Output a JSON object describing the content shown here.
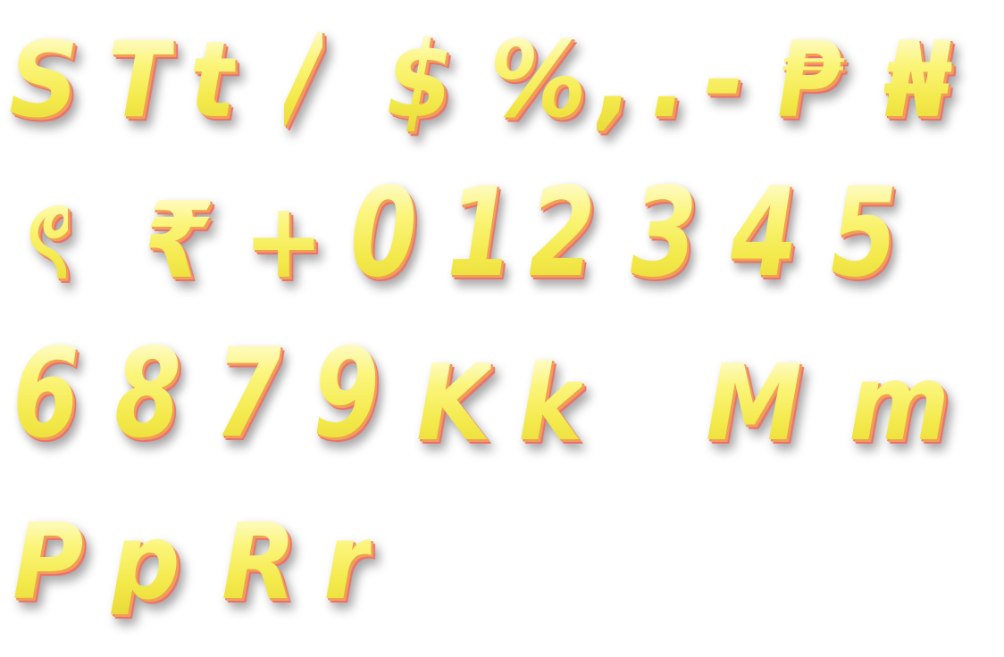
{
  "rows": [
    {
      "glyphs": [
        "S",
        "T",
        "t",
        "/",
        "$",
        "%",
        ",",
        ".",
        "-",
        "₱",
        "₦"
      ]
    },
    {
      "glyphs": [
        "ৎ",
        "₹",
        "+",
        "0",
        "1",
        "2",
        "3",
        "4",
        "5"
      ]
    },
    {
      "glyphs": [
        "6",
        "8",
        "7",
        "9",
        "K",
        "k",
        "M",
        "m"
      ]
    },
    {
      "glyphs": [
        "P",
        "p",
        "R",
        "r"
      ]
    }
  ],
  "colors": {
    "fill_top": "#fffde0",
    "fill_main": "#f8f35a",
    "outline_orange": "#f0a052",
    "outline_red": "#ee6f6f",
    "background": "#ffffff"
  }
}
